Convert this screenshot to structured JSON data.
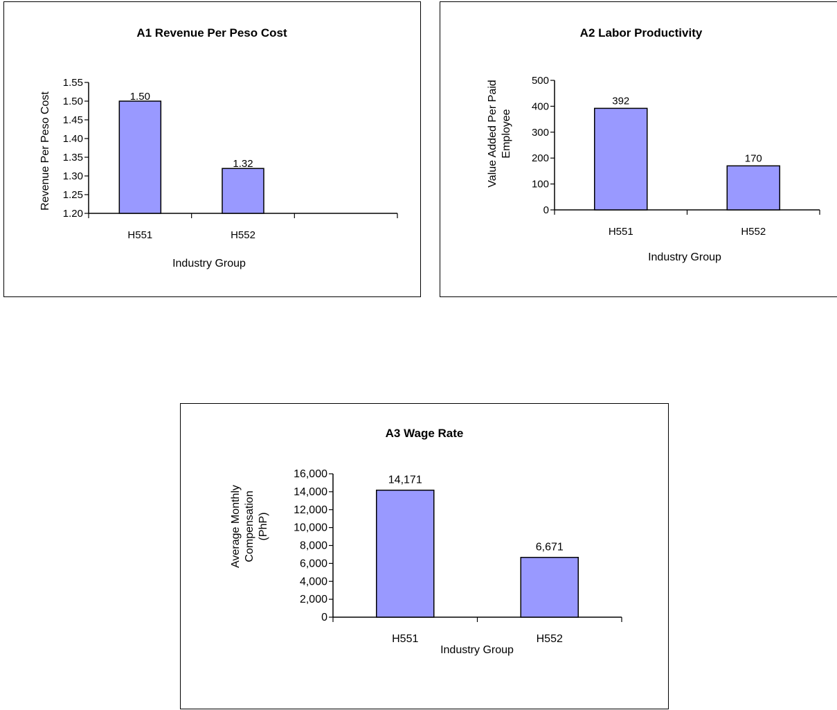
{
  "bar_color": "#9999ff",
  "chart_data": [
    {
      "type": "bar",
      "title": "A1  Revenue Per Peso Cost",
      "xlabel": "Industry Group",
      "ylabel": "Revenue Per Peso Cost",
      "categories": [
        "H551",
        "H552"
      ],
      "values": [
        1.5,
        1.32
      ],
      "data_labels": [
        "1.50",
        "1.32"
      ],
      "ylim": [
        1.2,
        1.55
      ],
      "yticks": [
        "1.20",
        "1.25",
        "1.30",
        "1.35",
        "1.40",
        "1.45",
        "1.50",
        "1.55"
      ],
      "grid": false,
      "legend": "none"
    },
    {
      "type": "bar",
      "title": "A2  Labor Productivity",
      "xlabel": "Industry Group",
      "ylabel": [
        "Value Added Per Paid",
        "Employee"
      ],
      "categories": [
        "H551",
        "H552"
      ],
      "values": [
        392,
        170
      ],
      "data_labels": [
        "392",
        "170"
      ],
      "ylim": [
        0,
        500
      ],
      "yticks": [
        "0",
        "100",
        "200",
        "300",
        "400",
        "500"
      ],
      "grid": false,
      "legend": "none"
    },
    {
      "type": "bar",
      "title": "A3  Wage Rate",
      "xlabel": "Industry Group",
      "ylabel": [
        "Average Monthly",
        "Compensation",
        "(PhP)"
      ],
      "categories": [
        "H551",
        "H552"
      ],
      "values": [
        14171,
        6671
      ],
      "data_labels": [
        "14,171",
        "6,671"
      ],
      "ylim": [
        0,
        16000
      ],
      "yticks": [
        "0",
        "2,000",
        "4,000",
        "6,000",
        "8,000",
        "10,000",
        "12,000",
        "14,000",
        "16,000"
      ],
      "grid": false,
      "legend": "none"
    }
  ]
}
